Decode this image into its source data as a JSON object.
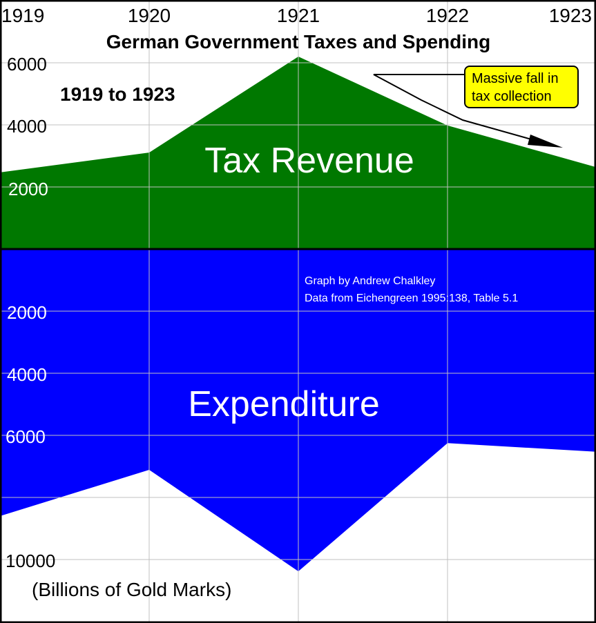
{
  "chart_data": {
    "type": "area",
    "title": "German Government Taxes and Spending",
    "subtitle": "1919 to 1923",
    "xlabel": "",
    "ylabel": "(Billions of Gold Marks)",
    "categories": [
      "1919",
      "1920",
      "1921",
      "1922",
      "1923"
    ],
    "series": [
      {
        "name": "Tax Revenue",
        "color": "#007800",
        "direction": "up",
        "values": [
          2470,
          3110,
          6200,
          3980,
          2640
        ]
      },
      {
        "name": "Expenditure",
        "color": "#0000FF",
        "direction": "down",
        "values": [
          8600,
          7110,
          10380,
          6250,
          6530
        ]
      }
    ],
    "yticks_top": [
      2000,
      4000,
      6000
    ],
    "yticks_bottom": [
      2000,
      4000,
      6000,
      10000
    ],
    "ylim_top": [
      0,
      6000
    ],
    "ylim_bottom": [
      0,
      10000
    ],
    "grid": true,
    "annotations": [
      {
        "text": "Massive fall in tax collection",
        "style": "yellow-callout-with-arrow"
      },
      {
        "text": "Graph by Andrew Chalkley"
      },
      {
        "text": "Data from Eichengreen 1995:138, Table 5.1"
      }
    ]
  },
  "labels": {
    "title": "German Government Taxes and Spending",
    "subtitle": "1919 to 1923",
    "years": [
      "1919",
      "1920",
      "1921",
      "1922",
      "1923"
    ],
    "tax_label": "Tax Revenue",
    "exp_label": "Expenditure",
    "ytop": [
      "6000",
      "4000",
      "2000"
    ],
    "ybottom": [
      "2000",
      "4000",
      "6000",
      "10000"
    ],
    "units": "(Billions of Gold Marks)",
    "callout_line1": "Massive fall in",
    "callout_line2": "tax collection",
    "credit_line1": "Graph by Andrew Chalkley",
    "credit_line2": "Data from Eichengreen 1995:138, Table 5.1"
  },
  "colors": {
    "tax": "#007800",
    "expenditure": "#0000FF",
    "callout": "#FFFF00",
    "grid": "#C0C0C0"
  }
}
